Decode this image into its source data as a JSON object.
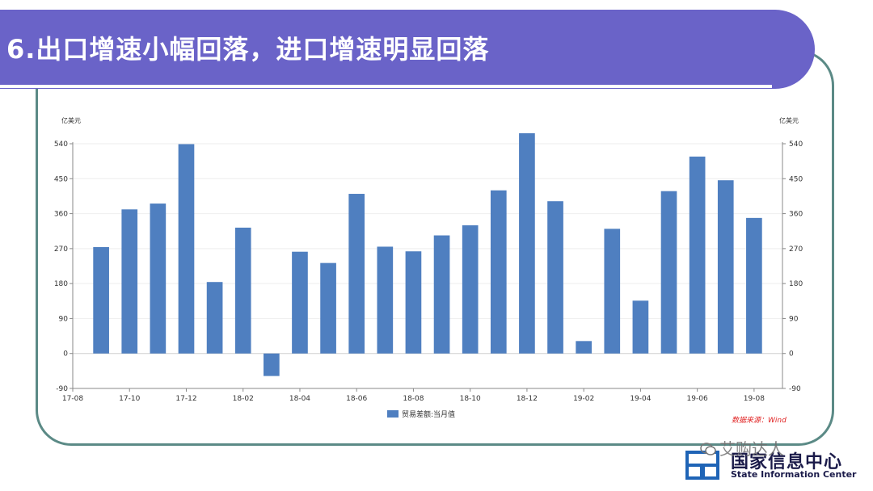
{
  "title": "6.出口增速小幅回落，进口增速明显回落",
  "colors": {
    "banner": "#6a63c8",
    "bar": "#4f7fc0",
    "frame": "#5b8a86",
    "source": "#e02020"
  },
  "chart_data": {
    "type": "bar",
    "unit_left": "亿美元",
    "unit_right": "亿美元",
    "ylim": [
      -90,
      540
    ],
    "yticks": [
      -90,
      0,
      90,
      180,
      270,
      360,
      450,
      540
    ],
    "xlim": [
      "17-08",
      "19-09"
    ],
    "xticks": [
      "17-08",
      "17-10",
      "17-12",
      "18-02",
      "18-04",
      "18-06",
      "18-08",
      "18-10",
      "18-12",
      "19-02",
      "19-04",
      "19-06",
      "19-08"
    ],
    "categories": [
      "17-09",
      "17-10",
      "17-11",
      "17-12",
      "18-01",
      "18-02",
      "18-03",
      "18-04",
      "18-05",
      "18-06",
      "18-07",
      "18-08",
      "18-09",
      "18-10",
      "18-11",
      "18-12",
      "19-01",
      "19-02",
      "19-03",
      "19-04",
      "19-05",
      "19-06",
      "19-07",
      "19-08"
    ],
    "series": [
      {
        "name": "贸易差额:当月值",
        "values": [
          274,
          371,
          386,
          539,
          184,
          324,
          -58,
          262,
          233,
          411,
          275,
          263,
          304,
          330,
          420,
          567,
          392,
          32,
          321,
          136,
          418,
          507,
          446,
          349
        ]
      }
    ],
    "legend": "bottom",
    "grid": true
  },
  "source": "数据来源：Wind",
  "logo": {
    "cn": "国家信息中心",
    "en": "State Information Center"
  },
  "watermark": "艾购达人"
}
